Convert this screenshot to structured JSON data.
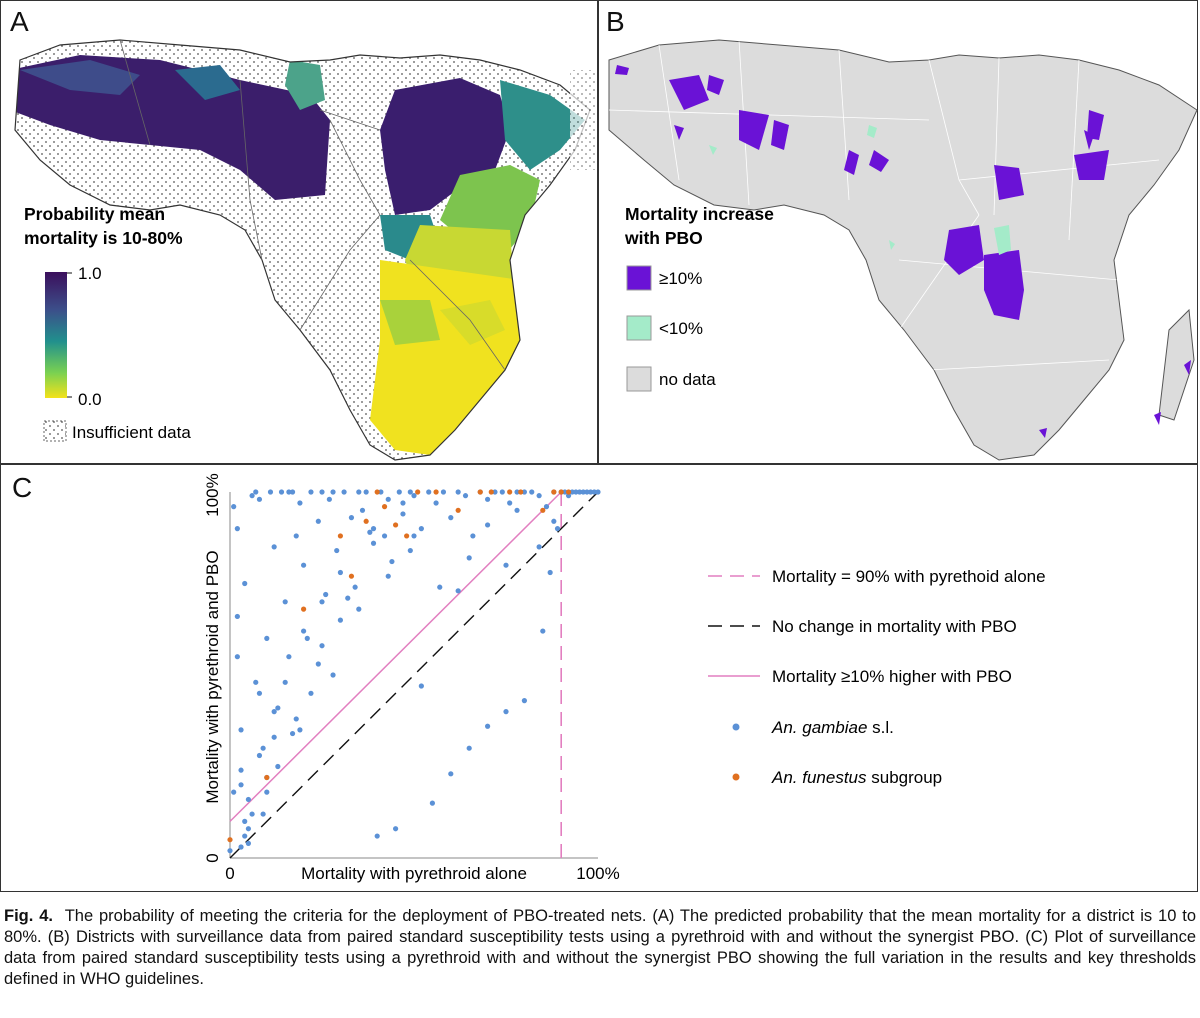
{
  "panel_a": {
    "letter": "A",
    "legend_title_line1": "Probability mean",
    "legend_title_line2": "mortality is 10-80%",
    "scale_max": "1.0",
    "scale_min": "0.0",
    "insufficient_label": "Insufficient data",
    "colors": {
      "high": "#3b0f5c",
      "mid": "#2a8a8c",
      "low": "#f3e21a",
      "ocean": "#ffffff"
    }
  },
  "panel_b": {
    "letter": "B",
    "legend_title_line1": "Mortality increase",
    "legend_title_line2": "with PBO",
    "items": [
      {
        "label": "≥10%",
        "color": "#6a12d6"
      },
      {
        "label": "<10%",
        "color": "#a4ebc9"
      },
      {
        "label": "no data",
        "color": "#dcdcdc"
      }
    ]
  },
  "panel_c": {
    "letter": "C",
    "legend": [
      {
        "label": "Mortality = 90% with pyrethoid alone",
        "style": "pink-dashed"
      },
      {
        "label": "No change in mortality with PBO",
        "style": "black-dashed"
      },
      {
        "label": "Mortality ≥10% higher with PBO",
        "style": "pink-solid"
      },
      {
        "label_italic": "An. gambiae",
        "label_rest": " s.l.",
        "color": "#5b91d6"
      },
      {
        "label_italic": "An. funestus",
        "label_rest": " subgroup",
        "color": "#e07020"
      }
    ]
  },
  "chart_data": {
    "type": "scatter",
    "xlabel": "Mortality with pyrethroid alone",
    "ylabel": "Mortality with pyrethroid and PBO",
    "x_tick_labels": [
      "0",
      "100%"
    ],
    "y_tick_labels": [
      "0",
      "100%"
    ],
    "xlim": [
      0,
      100
    ],
    "ylim": [
      0,
      100
    ],
    "reference_lines": {
      "vertical_x": 90,
      "identity_offset": 0,
      "improvement_offset": 10
    },
    "series": [
      {
        "name": "An. gambiae s.l.",
        "color": "#5b91d6",
        "x": [
          0,
          1,
          2,
          2,
          3,
          3,
          3,
          4,
          4,
          5,
          5,
          6,
          7,
          8,
          8,
          9,
          9,
          10,
          10,
          11,
          12,
          12,
          13,
          14,
          15,
          16,
          16,
          17,
          18,
          19,
          20,
          21,
          22,
          22,
          24,
          25,
          26,
          27,
          28,
          29,
          30,
          31,
          33,
          34,
          35,
          36,
          37,
          39,
          41,
          43,
          44,
          46,
          47,
          49,
          50,
          52,
          54,
          56,
          58,
          60,
          62,
          64,
          66,
          68,
          70,
          72,
          74,
          76,
          78,
          80,
          82,
          84,
          86,
          88,
          90,
          91,
          92,
          93,
          94,
          95,
          96,
          97,
          98,
          99,
          100,
          55,
          60,
          65,
          70,
          75,
          80,
          85,
          87,
          89,
          40,
          45,
          30,
          25,
          20,
          15,
          10,
          5,
          3,
          2,
          1,
          12,
          18,
          35,
          52,
          75,
          84,
          88,
          47,
          39,
          42,
          49,
          62,
          28,
          19,
          8,
          6,
          4,
          65,
          70,
          78,
          50,
          57,
          25,
          32,
          43,
          38,
          24,
          13,
          17,
          7
        ],
        "y": [
          2,
          96,
          90,
          66,
          20,
          24,
          35,
          10,
          75,
          8,
          4,
          99,
          100,
          98,
          45,
          30,
          12,
          60,
          18,
          100,
          85,
          40,
          25,
          100,
          70,
          100,
          55,
          100,
          88,
          97,
          80,
          60,
          100,
          45,
          92,
          100,
          72,
          98,
          100,
          84,
          65,
          100,
          93,
          74,
          100,
          95,
          100,
          86,
          100,
          98,
          81,
          100,
          94,
          100,
          99,
          90,
          100,
          97,
          100,
          93,
          100,
          99,
          88,
          100,
          98,
          100,
          100,
          97,
          100,
          100,
          100,
          99,
          96,
          100,
          100,
          100,
          99,
          100,
          100,
          100,
          100,
          100,
          100,
          100,
          100,
          15,
          23,
          30,
          36,
          40,
          43,
          62,
          78,
          90,
          6,
          8,
          78,
          70,
          62,
          48,
          22,
          16,
          3,
          55,
          18,
          33,
          38,
          68,
          47,
          80,
          85,
          92,
          97,
          90,
          88,
          84,
          73,
          50,
          35,
          28,
          12,
          6,
          82,
          91,
          95,
          88,
          74,
          58,
          71,
          77,
          89,
          53,
          41,
          34,
          48
        ]
      },
      {
        "name": "An. funestus subgroup",
        "color": "#e07020",
        "x": [
          0,
          10,
          20,
          30,
          33,
          37,
          40,
          42,
          45,
          48,
          51,
          56,
          62,
          68,
          71,
          76,
          79,
          85,
          88,
          90,
          92
        ],
        "y": [
          5,
          22,
          68,
          88,
          77,
          92,
          100,
          96,
          91,
          88,
          100,
          100,
          95,
          100,
          100,
          100,
          100,
          95,
          100,
          100,
          100
        ]
      }
    ]
  },
  "caption": {
    "fig_label": "Fig. 4.",
    "text": "The probability of meeting the criteria for the deployment of PBO-treated nets. (A) The predicted probability that the mean mortality for a district is 10 to 80%. (B) Districts with surveillance data from paired standard susceptibility tests using a pyrethroid with and without the synergist PBO. (C) Plot of surveillance data from paired standard susceptibility tests using a pyrethroid with and without the synergist PBO showing the full variation in the results and key thresholds defined in WHO guidelines."
  }
}
